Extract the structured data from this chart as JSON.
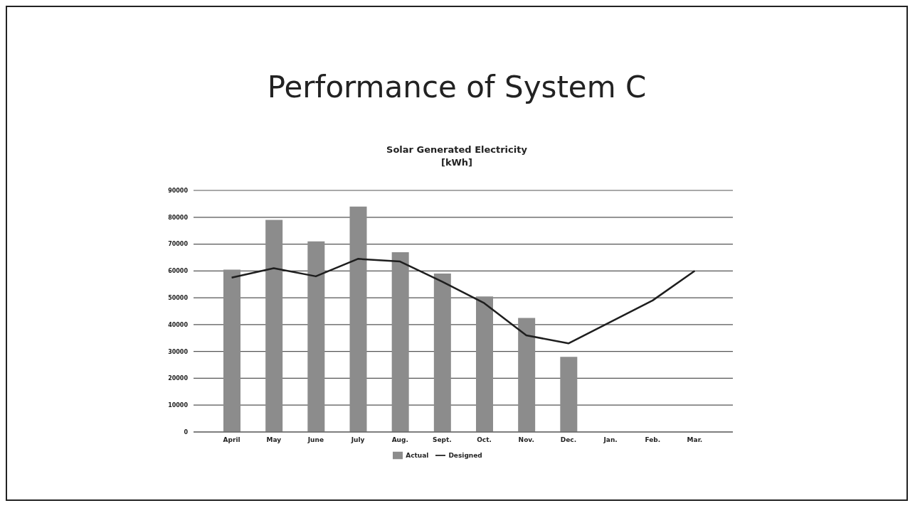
{
  "chart_data": {
    "type": "bar",
    "title": "Performance of System C",
    "subtitle": "Solar Generated Electricity\n[kWh]",
    "categories": [
      "April",
      "May",
      "June",
      "July",
      "Aug.",
      "Sept.",
      "Oct.",
      "Nov.",
      "Dec.",
      "Jan.",
      "Feb.",
      "Mar."
    ],
    "series": [
      {
        "name": "Actual",
        "color": "#8c8c8c",
        "values": [
          60500,
          79000,
          71000,
          84000,
          67000,
          59000,
          50500,
          42500,
          28000,
          null,
          null,
          null
        ]
      },
      {
        "name": "Designed",
        "type": "line",
        "color": "#1e1e1e",
        "values": [
          57500,
          61000,
          58000,
          64500,
          63500,
          56000,
          48000,
          36000,
          33000,
          41000,
          49000,
          60000
        ]
      }
    ],
    "ylim": [
      0,
      90000
    ],
    "yticks": [
      0,
      10000,
      20000,
      30000,
      40000,
      50000,
      60000,
      70000,
      80000,
      90000
    ],
    "grid": "y",
    "legend": "bottom",
    "marker": "none"
  }
}
